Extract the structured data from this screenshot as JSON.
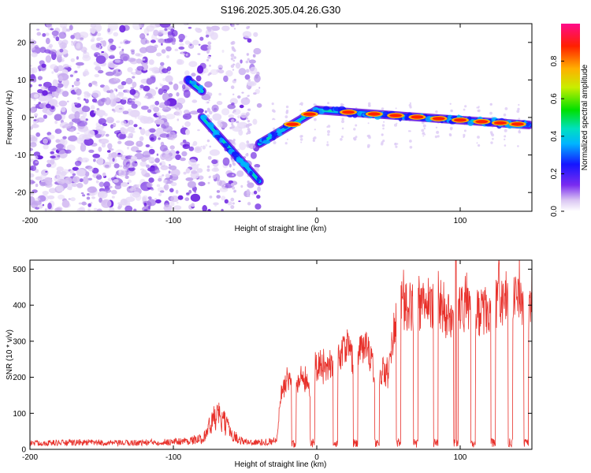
{
  "title": "S196.2025.305.04.26.G30",
  "chart_data": [
    {
      "type": "heatmap",
      "xlabel": "Height of straight line (km)",
      "ylabel": "Frequency (Hz)",
      "xlim": [
        -200,
        150
      ],
      "ylim": [
        -25,
        25
      ],
      "xticks": [
        -200,
        -100,
        0,
        100
      ],
      "yticks": [
        -20,
        -10,
        0,
        10,
        20
      ],
      "colorbar": {
        "label": "Normalized spectral amplitude",
        "range": [
          0,
          1
        ],
        "ticks": [
          "0.0",
          "0.2",
          "0.4",
          "0.6",
          "0.8"
        ]
      },
      "features": {
        "noise_region_x": [
          -200,
          -40
        ],
        "line_segments": [
          {
            "x": [
              -90,
              -80
            ],
            "y": [
              10,
              7
            ]
          },
          {
            "x": [
              -80,
              -40
            ],
            "y": [
              0,
              -17
            ]
          },
          {
            "x": [
              -40,
              0
            ],
            "y": [
              -7,
              2
            ]
          },
          {
            "x": [
              0,
              148
            ],
            "y": [
              2,
              -2
            ]
          }
        ],
        "hot_spots_x": [
          -17,
          -5,
          22,
          40,
          55,
          70,
          85,
          100,
          115,
          128,
          140
        ]
      }
    },
    {
      "type": "line",
      "xlabel": "Height of straight line (km)",
      "ylabel": "SNR (10 * v/v)",
      "xlim": [
        -200,
        150
      ],
      "ylim": [
        0,
        525
      ],
      "xticks": [
        -200,
        -100,
        0,
        100
      ],
      "yticks": [
        0,
        100,
        200,
        300,
        400,
        500
      ],
      "series": [
        {
          "name": "SNR",
          "color": "#e8302a",
          "envelope": {
            "x": [
              -200,
              -160,
              -140,
              -100,
              -90,
              -80,
              -75,
              -70,
              -65,
              -60,
              -55,
              -50,
              -40,
              -28,
              -25,
              -20,
              -15,
              -10,
              -5,
              0,
              5,
              10,
              15,
              20,
              25,
              30,
              35,
              40,
              45,
              50,
              55,
              60,
              70,
              80,
              90,
              100,
              110,
              120,
              130,
              140,
              148
            ],
            "y": [
              18,
              20,
              18,
              22,
              25,
              30,
              65,
              100,
              80,
              50,
              30,
              22,
              20,
              25,
              160,
              200,
              180,
              220,
              170,
              240,
              230,
              250,
              260,
              310,
              260,
              280,
              300,
              220,
              230,
              210,
              400,
              420,
              410,
              430,
              380,
              420,
              390,
              410,
              430,
              440,
              420
            ]
          },
          "dropouts_x": [
            -16,
            -3,
            13,
            27,
            42,
            57,
            69,
            83,
            97,
            109,
            123,
            135,
            146
          ],
          "peak": {
            "x": 97,
            "y": 525
          }
        }
      ]
    }
  ]
}
